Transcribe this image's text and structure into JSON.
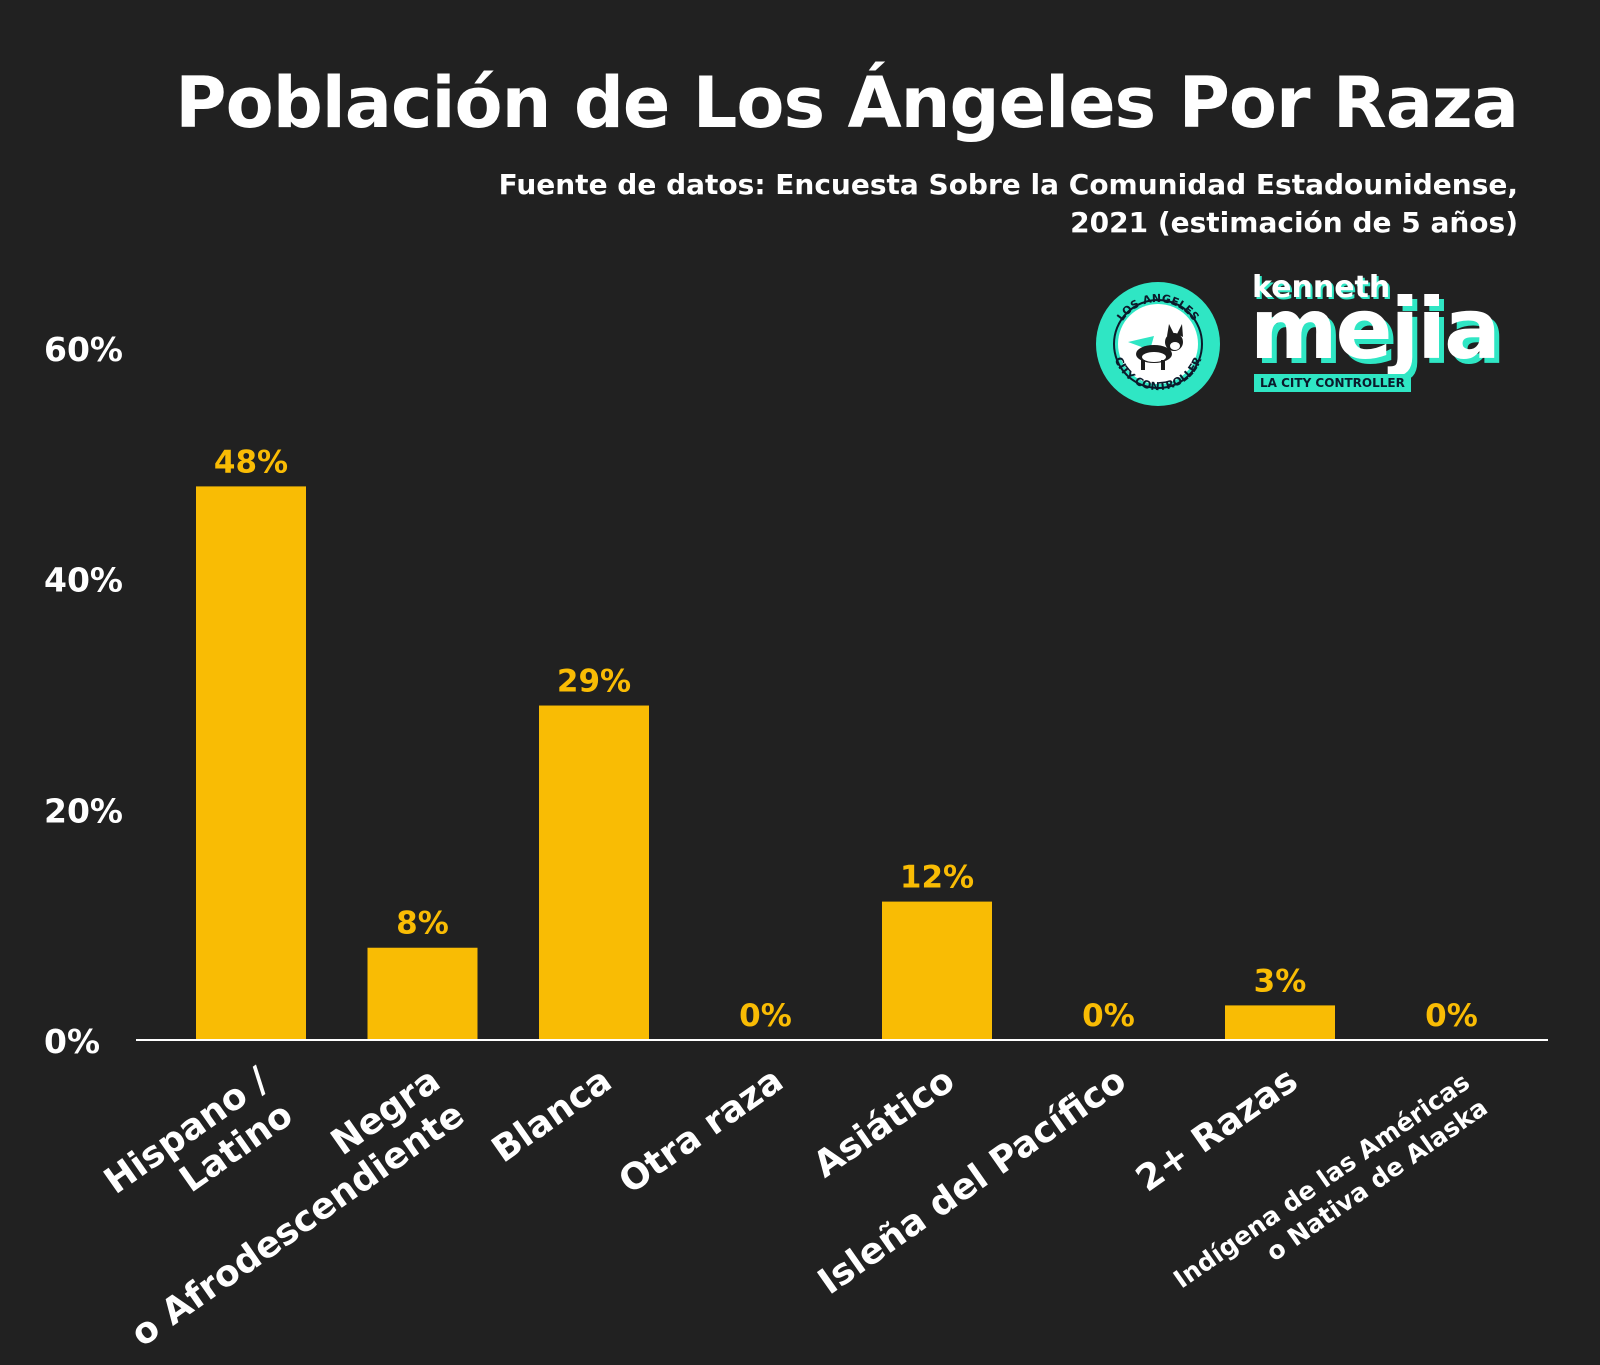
{
  "header": {
    "title": "Población de Los Ángeles Por Raza",
    "subtitle_line1": "Fuente de datos: Encuesta Sobre la Comunidad Estadounidense,",
    "subtitle_line2": "2021 (estimación de 5 años)"
  },
  "logos": {
    "seal_top_text": "LOS ANGELES",
    "seal_bottom_text": "CITY CONTROLLER",
    "brand_first": "kenneth",
    "brand_last": "mejia",
    "brand_tagline": "LA CITY CONTROLLER"
  },
  "colors": {
    "background": "#212121",
    "bar": "#f9bc04",
    "label": "#f9bc04",
    "text": "#ffffff",
    "accent": "#2fe6c4"
  },
  "chart_data": {
    "type": "bar",
    "categories": [
      [
        "Hispano /",
        "Latino"
      ],
      [
        "Negra",
        "o Afrodescendiente"
      ],
      [
        "Blanca"
      ],
      [
        "Otra raza"
      ],
      [
        "Asiático"
      ],
      [
        "Isleña del Pacífico"
      ],
      [
        "2+ Razas"
      ],
      [
        "Indígena de las Américas",
        "o Nativa de Alaska"
      ]
    ],
    "values": [
      48,
      8,
      29,
      0,
      12,
      0,
      3,
      0
    ],
    "data_labels": [
      "48%",
      "8%",
      "29%",
      "0%",
      "12%",
      "0%",
      "3%",
      "0%"
    ],
    "ylim": [
      0,
      60
    ],
    "yticks": [
      0,
      20,
      40,
      60
    ],
    "ytick_labels": [
      "0%",
      "20%",
      "40%",
      "60%"
    ],
    "grid": false,
    "legend": "none"
  }
}
